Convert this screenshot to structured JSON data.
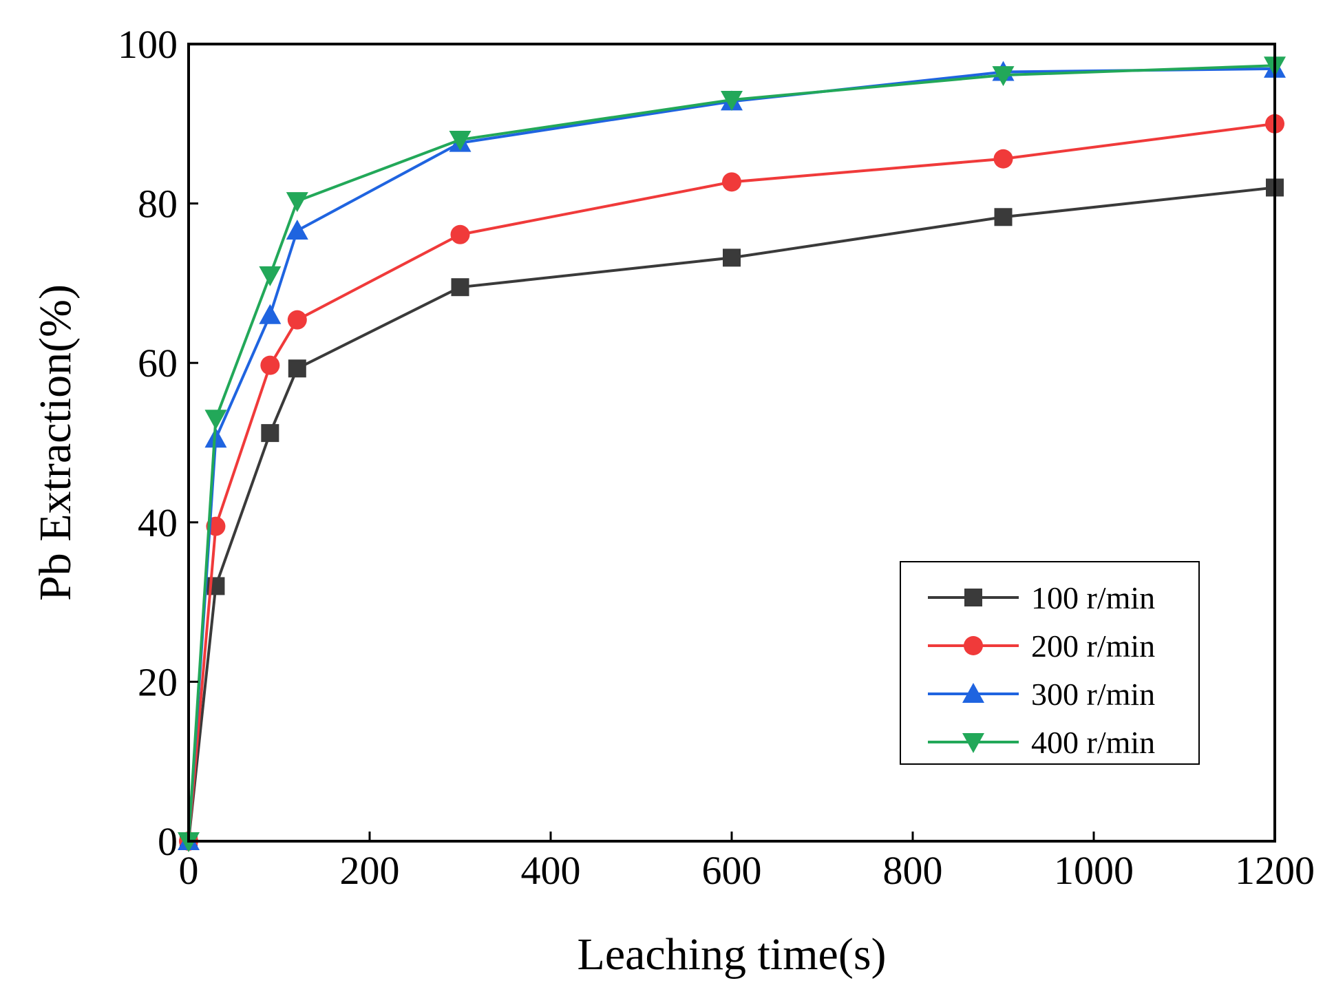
{
  "chart_data": {
    "type": "line",
    "title": "",
    "xlabel": "Leaching time(s)",
    "ylabel": "Pb Extraction(%)",
    "xlim": [
      0,
      1200
    ],
    "ylim": [
      0,
      100
    ],
    "xticks": [
      0,
      200,
      400,
      600,
      800,
      1000,
      1200
    ],
    "yticks": [
      0,
      20,
      40,
      60,
      80,
      100
    ],
    "x": [
      0,
      30,
      90,
      120,
      300,
      600,
      900,
      1200
    ],
    "legend_position": "lower-right",
    "grid": false,
    "series": [
      {
        "name": "100 r/min",
        "color": "#3a3a3a",
        "marker": "square",
        "values": [
          0,
          32.0,
          51.2,
          59.3,
          69.5,
          73.2,
          78.3,
          82.0
        ]
      },
      {
        "name": "200 r/min",
        "color": "#f03a3a",
        "marker": "circle",
        "values": [
          0,
          39.5,
          59.7,
          65.4,
          76.1,
          82.7,
          85.6,
          90.0
        ]
      },
      {
        "name": "300 r/min",
        "color": "#1f64e0",
        "marker": "triangle-up",
        "values": [
          0,
          50.5,
          66.0,
          76.6,
          87.6,
          92.8,
          96.5,
          96.9
        ]
      },
      {
        "name": "400 r/min",
        "color": "#22a859",
        "marker": "triangle-down",
        "values": [
          0,
          53.0,
          71.0,
          80.3,
          88.0,
          93.0,
          96.1,
          97.3
        ]
      }
    ]
  }
}
